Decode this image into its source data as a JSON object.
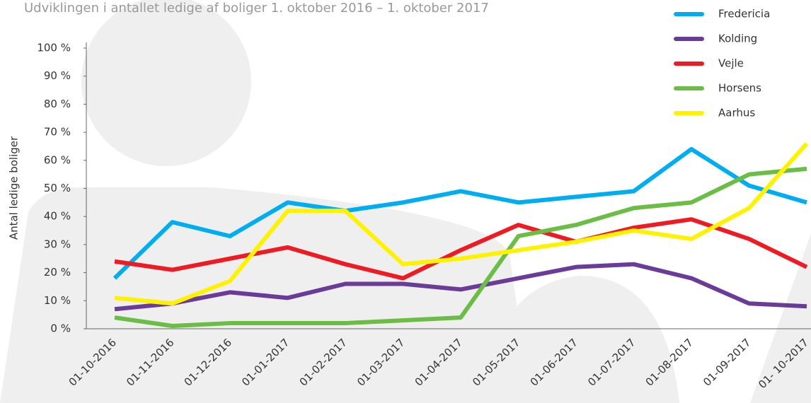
{
  "chart_data": {
    "type": "line",
    "title": "Udviklingen i antallet ledige af boliger 1. oktober 2016 – 1. oktober 2017",
    "y_label": "Antal ledige boliger",
    "categories": [
      "01-10-2016",
      "01-11-2016",
      "01-12-2016",
      "01-01-2017",
      "01-02-2017",
      "01-03-2017",
      "01-04-2017",
      "01-05-2017",
      "01-06-2017",
      "01-07-2017",
      "01-08-2017",
      "01-09-2017",
      "01- 10-2017"
    ],
    "series": [
      {
        "name": "Fredericia",
        "color": "#00aeef",
        "values": [
          18,
          38,
          33,
          45,
          42,
          45,
          49,
          45,
          47,
          49,
          64,
          51,
          45
        ]
      },
      {
        "name": "Kolding",
        "color": "#6a3b97",
        "values": [
          7,
          9,
          13,
          11,
          16,
          16,
          14,
          18,
          22,
          23,
          18,
          9,
          8
        ]
      },
      {
        "name": "Vejle",
        "color": "#ed1c24",
        "values": [
          24,
          21,
          25,
          29,
          23,
          18,
          28,
          37,
          31,
          36,
          39,
          32,
          22
        ]
      },
      {
        "name": "Horsens",
        "color": "#6cbd45",
        "values": [
          4,
          1,
          2,
          2,
          2,
          3,
          4,
          33,
          37,
          43,
          45,
          55,
          57
        ]
      },
      {
        "name": "Aarhus",
        "color": "#fff200",
        "values": [
          11,
          9,
          17,
          42,
          42,
          23,
          25,
          28,
          31,
          35,
          32,
          43,
          66
        ]
      }
    ],
    "ylim": [
      0,
      100
    ],
    "yticks": [
      {
        "value": 0,
        "label": "0 %"
      },
      {
        "value": 10,
        "label": "10 %"
      },
      {
        "value": 20,
        "label": "20 %"
      },
      {
        "value": 30,
        "label": "30 %"
      },
      {
        "value": 40,
        "label": "40 %"
      },
      {
        "value": 50,
        "label": "50 %"
      },
      {
        "value": 60,
        "label": "60 %"
      },
      {
        "value": 70,
        "label": "70 %"
      },
      {
        "value": 80,
        "label": "80 %"
      },
      {
        "value": 90,
        "label": "90 %"
      },
      {
        "value": 100,
        "label": "100 %"
      }
    ]
  }
}
